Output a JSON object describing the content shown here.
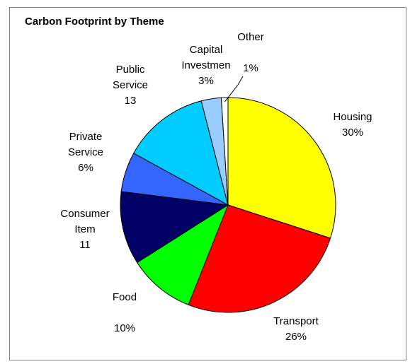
{
  "chart_data": {
    "type": "pie",
    "title": "Carbon Footprint by Theme",
    "slices": [
      {
        "name": "Housing",
        "value": 30,
        "color": "#ffff00",
        "lines": [
          "Housing",
          "30%"
        ]
      },
      {
        "name": "Transport",
        "value": 26,
        "color": "#ff0000",
        "lines": [
          "Transport",
          "26%"
        ]
      },
      {
        "name": "Food",
        "value": 10,
        "color": "#00ff00",
        "lines": [
          "Food",
          "",
          "10%"
        ]
      },
      {
        "name": "Consumer Item",
        "value": 11,
        "color": "#000066",
        "lines": [
          "Consumer",
          "Item",
          "11"
        ]
      },
      {
        "name": "Private Service",
        "value": 6,
        "color": "#3366ff",
        "lines": [
          "Private",
          "Service",
          "6%"
        ]
      },
      {
        "name": "Public Service",
        "value": 13,
        "color": "#00ccff",
        "lines": [
          "Public",
          "Service",
          "13"
        ]
      },
      {
        "name": "Capital Investment",
        "value": 3,
        "color": "#99ccff",
        "lines": [
          "Capital",
          "Investmen",
          "3%"
        ]
      },
      {
        "name": "Other",
        "value": 1,
        "color": "#ffffff",
        "lines": [
          "Other",
          "",
          "1%"
        ]
      }
    ]
  }
}
